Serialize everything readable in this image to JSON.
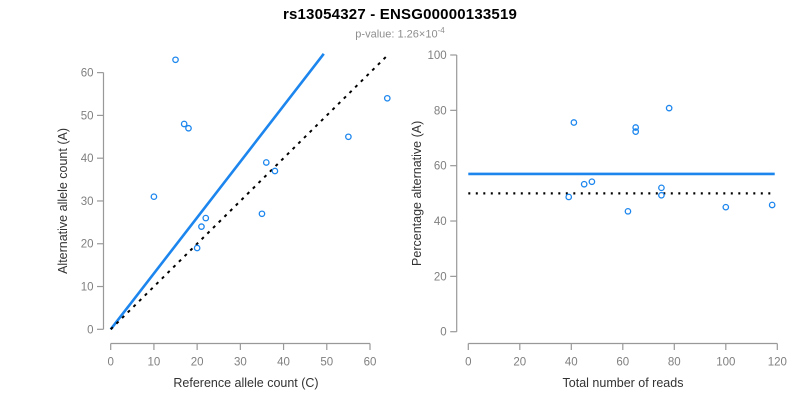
{
  "header": {
    "title": "rs13054327 - ENSG00000133519",
    "subtitle_prefix": "p-value: 1.26×10",
    "subtitle_exponent": "-4"
  },
  "colors": {
    "accent_blue": "#1c86ee",
    "line_black": "#000000",
    "axis_gray": "#999999",
    "tick_label_gray": "#7f7f7f",
    "axis_title_color": "#333333",
    "subtitle_gray": "#8e8e8e"
  },
  "chart_data": [
    {
      "type": "scatter",
      "panel": "left",
      "xlabel": "Reference allele count (C)",
      "ylabel": "Alternative allele count (A)",
      "xticks": [
        0,
        10,
        20,
        30,
        40,
        50,
        60
      ],
      "yticks": [
        0,
        10,
        20,
        30,
        40,
        50,
        60
      ],
      "xlim": [
        0,
        65
      ],
      "ylim": [
        0,
        65
      ],
      "grid": false,
      "legend": "none",
      "point_color": "#1c86ee",
      "points": [
        [
          15,
          63
        ],
        [
          17,
          48
        ],
        [
          18,
          47
        ],
        [
          10,
          31
        ],
        [
          36,
          39
        ],
        [
          38,
          37
        ],
        [
          22,
          26
        ],
        [
          21,
          24
        ],
        [
          20,
          19
        ],
        [
          35,
          27
        ],
        [
          55,
          45
        ],
        [
          64,
          54
        ]
      ],
      "lines": [
        {
          "name": "fitted-allelic-ratio-line",
          "style": "solid",
          "color": "#1c86ee",
          "width": 2.6,
          "from": [
            0,
            0
          ],
          "to": [
            49.3,
            64.4
          ]
        },
        {
          "name": "identity-line",
          "style": "dashed",
          "color": "#000000",
          "width": 2.0,
          "from": [
            0,
            0
          ],
          "to": [
            63.8,
            63.8
          ]
        }
      ]
    },
    {
      "type": "scatter",
      "panel": "right",
      "xlabel": "Total number of reads",
      "ylabel": "Percentage alternative (A)",
      "xticks": [
        0,
        20,
        40,
        60,
        80,
        100,
        120
      ],
      "yticks": [
        0,
        20,
        40,
        60,
        80,
        100
      ],
      "xlim": [
        0,
        120
      ],
      "ylim": [
        0,
        100
      ],
      "grid": false,
      "legend": "none",
      "point_color": "#1c86ee",
      "points": [
        [
          78,
          80.8
        ],
        [
          41,
          75.6
        ],
        [
          65,
          73.8
        ],
        [
          65,
          72.3
        ],
        [
          75,
          52
        ],
        [
          75,
          49.3
        ],
        [
          48,
          54.2
        ],
        [
          45,
          53.3
        ],
        [
          39,
          48.7
        ],
        [
          62,
          43.5
        ],
        [
          100,
          45
        ],
        [
          118,
          45.8
        ]
      ],
      "lines": [
        {
          "name": "fitted-percentage-line",
          "style": "solid",
          "color": "#1c86ee",
          "width": 2.6,
          "from": [
            0,
            57
          ],
          "to": [
            119,
            57
          ]
        },
        {
          "name": "balanced-50-percent-line",
          "style": "dotted",
          "color": "#000000",
          "width": 2.2,
          "from": [
            0,
            50
          ],
          "to": [
            119,
            50
          ]
        }
      ]
    }
  ]
}
